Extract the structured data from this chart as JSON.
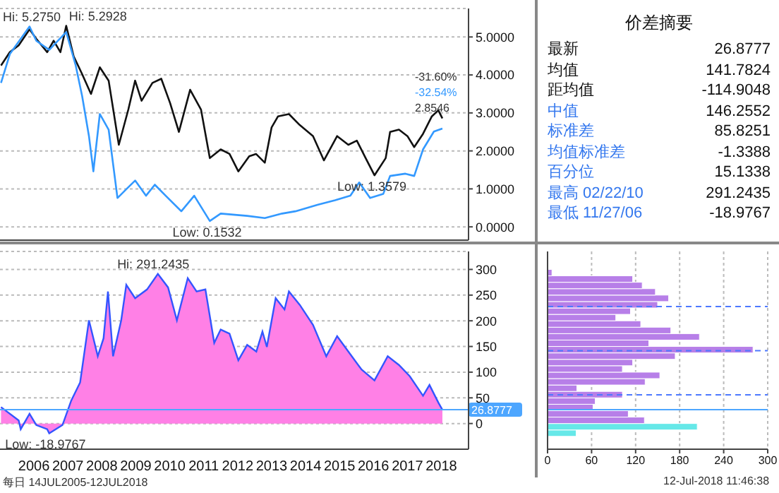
{
  "chart_data": [
    {
      "type": "line",
      "tick_labels": "y",
      "grid": "y",
      "xlim": [
        2005.5,
        2019.3
      ],
      "ylim": [
        -0.35,
        5.75
      ],
      "yticks": [
        {
          "value": 0,
          "label": "0.0000"
        },
        {
          "value": 1,
          "label": "1.0000"
        },
        {
          "value": 2,
          "label": "2.0000"
        },
        {
          "value": 3,
          "label": "3.0000"
        },
        {
          "value": 4,
          "label": "4.0000"
        },
        {
          "value": 5,
          "label": "5.0000"
        }
      ],
      "series": [
        {
          "color": "#111111",
          "x": [
            2005.53,
            2005.79,
            2006.05,
            2006.37,
            2006.57,
            2006.89,
            2007.08,
            2007.28,
            2007.45,
            2007.67,
            2007.92,
            2008.18,
            2008.44,
            2008.7,
            2009.0,
            2009.28,
            2009.48,
            2009.67,
            2009.99,
            2010.25,
            2010.51,
            2010.77,
            2011.1,
            2011.42,
            2011.68,
            2012.0,
            2012.26,
            2012.52,
            2012.84,
            2013.04,
            2013.3,
            2013.5,
            2013.69,
            2014.01,
            2014.33,
            2014.72,
            2015.04,
            2015.43,
            2015.76,
            2016.01,
            2016.27,
            2016.53,
            2016.86,
            2016.99,
            2017.25,
            2017.5,
            2017.7,
            2017.96,
            2018.22,
            2018.41,
            2018.53
          ],
          "values": [
            4.25,
            4.6,
            4.78,
            5.2,
            4.95,
            4.6,
            4.9,
            4.6,
            5.2928,
            4.49,
            4.02,
            3.5,
            4.2,
            3.85,
            2.16,
            3.09,
            3.85,
            3.32,
            3.79,
            3.9,
            3.26,
            2.5,
            3.61,
            3.09,
            1.81,
            2.04,
            1.92,
            1.46,
            1.86,
            1.92,
            1.69,
            2.62,
            2.91,
            2.97,
            2.68,
            2.39,
            1.75,
            2.39,
            2.16,
            2.27,
            1.81,
            1.3579,
            1.81,
            2.5,
            2.56,
            2.39,
            2.1,
            2.45,
            2.91,
            3.07,
            2.8546
          ]
        },
        {
          "color": "#3399ff",
          "x": [
            2005.53,
            2005.79,
            2006.37,
            2006.57,
            2006.95,
            2007.45,
            2007.73,
            2007.92,
            2008.12,
            2008.25,
            2008.44,
            2008.7,
            2008.96,
            2009.22,
            2009.48,
            2009.8,
            2010.06,
            2010.38,
            2010.84,
            2011.22,
            2011.68,
            2012.0,
            2012.78,
            2013.3,
            2013.81,
            2014.2,
            2014.85,
            2015.37,
            2015.82,
            2016.08,
            2016.4,
            2016.79,
            2016.99,
            2017.44,
            2017.7,
            2017.96,
            2018.28,
            2018.53
          ],
          "values": [
            3.79,
            4.55,
            5.275,
            4.9,
            4.66,
            5.13,
            4.25,
            3.44,
            2.39,
            1.46,
            2.97,
            2.56,
            0.76,
            0.99,
            1.22,
            0.82,
            1.11,
            0.82,
            0.41,
            0.82,
            0.1532,
            0.35,
            0.29,
            0.23,
            0.35,
            0.41,
            0.58,
            0.7,
            0.82,
            1.17,
            0.76,
            0.87,
            1.34,
            1.4,
            1.34,
            2.04,
            2.51,
            2.59
          ]
        }
      ],
      "annotations": [
        {
          "text": "Hi: 5.2750",
          "x": 2006.37,
          "y": 5.275
        },
        {
          "text": "Hi: 5.2928",
          "x": 2007.45,
          "y": 5.2928
        },
        {
          "text": "Low: 0.1532",
          "x": 2011.68,
          "y": 0.1532
        },
        {
          "text": "Low: 1.3579",
          "x": 2016.53,
          "y": 1.3579
        },
        "-31.60%",
        "-32.54%",
        "2.8546"
      ]
    },
    {
      "type": "area",
      "grid": "y",
      "xlim": [
        2005.5,
        2019.3
      ],
      "xticks": [
        {
          "value": 2006.5,
          "label": "2006"
        },
        {
          "value": 2007.5,
          "label": "2007"
        },
        {
          "value": 2008.5,
          "label": "2008"
        },
        {
          "value": 2009.5,
          "label": "2009"
        },
        {
          "value": 2010.5,
          "label": "2010"
        },
        {
          "value": 2011.5,
          "label": "2011"
        },
        {
          "value": 2012.5,
          "label": "2012"
        },
        {
          "value": 2013.5,
          "label": "2013"
        },
        {
          "value": 2014.5,
          "label": "2014"
        },
        {
          "value": 2015.5,
          "label": "2015"
        },
        {
          "value": 2016.5,
          "label": "2016"
        },
        {
          "value": 2017.5,
          "label": "2017"
        },
        {
          "value": 2018.5,
          "label": "2018"
        }
      ],
      "ylim": [
        -50,
        335
      ],
      "yticks": [
        0,
        50,
        100,
        150,
        200,
        250,
        300
      ],
      "x": [
        2005.53,
        2006.05,
        2006.11,
        2006.37,
        2006.57,
        2006.89,
        2006.95,
        2007.34,
        2007.6,
        2007.86,
        2008.12,
        2008.38,
        2008.55,
        2008.68,
        2008.83,
        2009.07,
        2009.22,
        2009.48,
        2009.83,
        2010.15,
        2010.45,
        2010.71,
        2011.03,
        2011.29,
        2011.55,
        2011.81,
        2012.0,
        2012.26,
        2012.52,
        2012.78,
        2013.05,
        2013.23,
        2013.36,
        2013.62,
        2013.88,
        2014.01,
        2014.33,
        2014.72,
        2015.11,
        2015.43,
        2015.76,
        2016.15,
        2016.53,
        2016.92,
        2017.25,
        2017.57,
        2017.96,
        2018.15,
        2018.41,
        2018.53
      ],
      "series": [
        {
          "color": "#ff80e6",
          "values": [
            32,
            6,
            -11,
            19,
            -3,
            -11,
            -18.9767,
            -3,
            45,
            80,
            201,
            131,
            166,
            257,
            131,
            201,
            270,
            244,
            261,
            291.2435,
            265,
            201,
            283,
            257,
            261,
            157,
            183,
            175,
            123,
            153,
            140,
            179,
            149,
            244,
            222,
            257,
            231,
            192,
            131,
            170,
            140,
            105,
            84,
            131,
            114,
            92,
            54,
            75,
            41,
            26.8777
          ]
        }
      ],
      "ref_lines": [
        {
          "axis": "y",
          "value": 26.8777,
          "label": "26.8777",
          "color": "#4da6ff"
        }
      ],
      "annotations": [
        {
          "text": "Hi: 291.2435",
          "x": 2010.15,
          "y": 291.2435
        },
        {
          "text": "Low: -18.9767",
          "x": 2006.95,
          "y": -18.9767
        },
        "每日 14JUL2005-12JUL2018"
      ]
    },
    {
      "type": "histogram",
      "orientation": "horizontal",
      "tick_labels": "x",
      "grid": "x",
      "xlim": [
        0,
        300
      ],
      "xticks": [
        0,
        60,
        120,
        180,
        240,
        300
      ],
      "ylim": [
        -50,
        335
      ],
      "bins": [
        -25,
        -12.5,
        0,
        12.5,
        25,
        37.5,
        50,
        62.5,
        75,
        87.5,
        100,
        112.5,
        125,
        137.5,
        150,
        162.5,
        175,
        187.5,
        200,
        212.5,
        225,
        237.5,
        250,
        262.5,
        275,
        287.5,
        300
      ],
      "values": [
        39,
        204,
        132,
        110,
        62,
        65,
        102,
        40,
        133,
        153,
        102,
        116,
        174,
        280,
        138,
        207,
        168,
        127,
        93,
        113,
        150,
        165,
        147,
        129,
        116,
        6
      ],
      "colors": [
        "#66e8e8",
        "#66e8e8",
        "#b77fe8",
        "#b77fe8",
        "#b77fe8",
        "#b77fe8",
        "#b77fe8",
        "#b77fe8",
        "#b77fe8",
        "#b77fe8",
        "#b77fe8",
        "#b77fe8",
        "#b77fe8",
        "#b77fe8",
        "#b77fe8",
        "#b77fe8",
        "#b77fe8",
        "#b77fe8",
        "#b77fe8",
        "#b77fe8",
        "#b77fe8",
        "#b77fe8",
        "#b77fe8",
        "#b77fe8",
        "#b77fe8",
        "#b77fe8"
      ],
      "ref_lines": [
        {
          "axis": "y",
          "value": 227.6075,
          "color": "#4d79ff",
          "line_style": "dashed"
        },
        {
          "axis": "y",
          "value": 141.7824,
          "color": "#4d79ff",
          "line_style": "dashed"
        },
        {
          "axis": "y",
          "value": 55.9573,
          "color": "#4d79ff",
          "line_style": "dashed"
        },
        {
          "axis": "y",
          "value": 26.8777,
          "color": "#4da6ff",
          "line_style": "solid"
        }
      ],
      "annotations": [
        "12-Jul-2018 11:46:38"
      ]
    },
    {
      "type": "other",
      "title": "价差摘要",
      "annotations": [
        "最新 26.8777",
        "均值 141.7824",
        "距均值 -114.9048",
        "中值 146.2552",
        "标准差 85.8251",
        "均值标准差 -1.3388",
        "百分位 15.1338",
        "最高 02/22/10 291.2435",
        "最低 11/27/06 -18.9767"
      ]
    }
  ]
}
